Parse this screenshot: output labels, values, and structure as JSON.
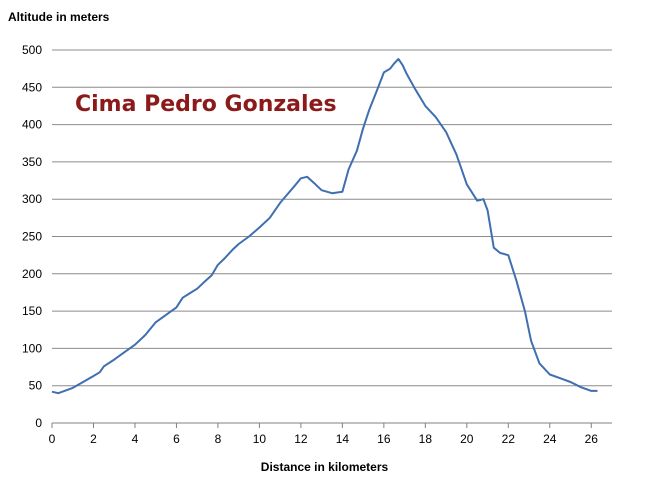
{
  "chart_data": {
    "type": "line",
    "title": "",
    "annotation": "Cima Pedro Gonzales",
    "annotation_color": "#8B1A1A",
    "xlabel": "Distance in kilometers",
    "ylabel": "Altitude in meters",
    "xlim": [
      0,
      27
    ],
    "ylim": [
      0,
      500
    ],
    "xticks": [
      0,
      2,
      4,
      6,
      8,
      10,
      12,
      14,
      16,
      18,
      20,
      22,
      24,
      26
    ],
    "yticks": [
      0,
      50,
      100,
      150,
      200,
      250,
      300,
      350,
      400,
      450,
      500
    ],
    "grid": true,
    "legend": "none",
    "line_color": "#3F6FB0",
    "series": [
      {
        "x": [
          0,
          0.3,
          0.5,
          1,
          1.5,
          2,
          2.3,
          2.5,
          3,
          3.5,
          4,
          4.5,
          5,
          5.5,
          6,
          6.3,
          6.7,
          7,
          7.3,
          7.7,
          8,
          8.3,
          8.7,
          9,
          9.5,
          10,
          10.5,
          11,
          11.3,
          11.7,
          12,
          12.3,
          12.7,
          13,
          13.5,
          14,
          14.3,
          14.7,
          15,
          15.3,
          15.7,
          16,
          16.3,
          16.5,
          16.7,
          16.9,
          17.1,
          17.5,
          18,
          18.5,
          19,
          19.5,
          20,
          20.5,
          20.8,
          21,
          21.3,
          21.6,
          22,
          22.4,
          22.8,
          23.1,
          23.5,
          24,
          24.5,
          25,
          25.5,
          26,
          26.3
        ],
        "y": [
          42,
          40,
          42,
          47,
          55,
          63,
          68,
          76,
          85,
          95,
          105,
          118,
          135,
          145,
          155,
          168,
          175,
          180,
          188,
          198,
          212,
          220,
          232,
          240,
          250,
          262,
          275,
          295,
          305,
          318,
          328,
          330,
          320,
          312,
          308,
          310,
          340,
          365,
          395,
          420,
          448,
          470,
          475,
          482,
          488,
          480,
          468,
          448,
          425,
          410,
          390,
          360,
          320,
          298,
          300,
          285,
          235,
          228,
          225,
          190,
          150,
          110,
          80,
          65,
          60,
          55,
          48,
          43,
          43
        ]
      }
    ]
  }
}
